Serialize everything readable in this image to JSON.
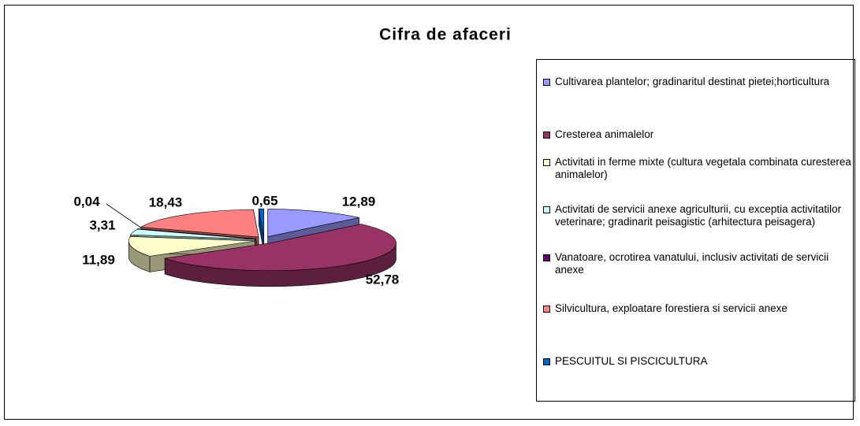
{
  "chart_data": {
    "type": "pie",
    "title": "Cifra de afaceri",
    "categories": [
      "Cultivarea plantelor; gradinaritul destinat pietei;horticultura",
      "Cresterea animalelor",
      "Activitati in ferme mixte (cultura vegetala combinata curesterea animalelor)",
      "Activitati de servicii anexe agriculturii, cu exceptia activitatilor veterinare; gradinarit peisagistic (arhitectura peisagera)",
      "Vanatoare, ocrotirea vanatului, inclusiv activitati de servicii anexe",
      "Silvicultura, exploatare forestiera si servicii anexe",
      "PESCUITUL SI PISCICULTURA"
    ],
    "values": [
      12.89,
      52.78,
      11.89,
      3.31,
      0.04,
      18.43,
      0.65
    ],
    "value_labels": [
      "12,89",
      "52,78",
      "11,89",
      "3,31",
      "0,04",
      "18,43",
      "0,65"
    ],
    "colors": [
      "#9999ff",
      "#993366",
      "#ffffcc",
      "#ccffff",
      "#660066",
      "#ff8080",
      "#0066cc"
    ],
    "legend": "right"
  }
}
